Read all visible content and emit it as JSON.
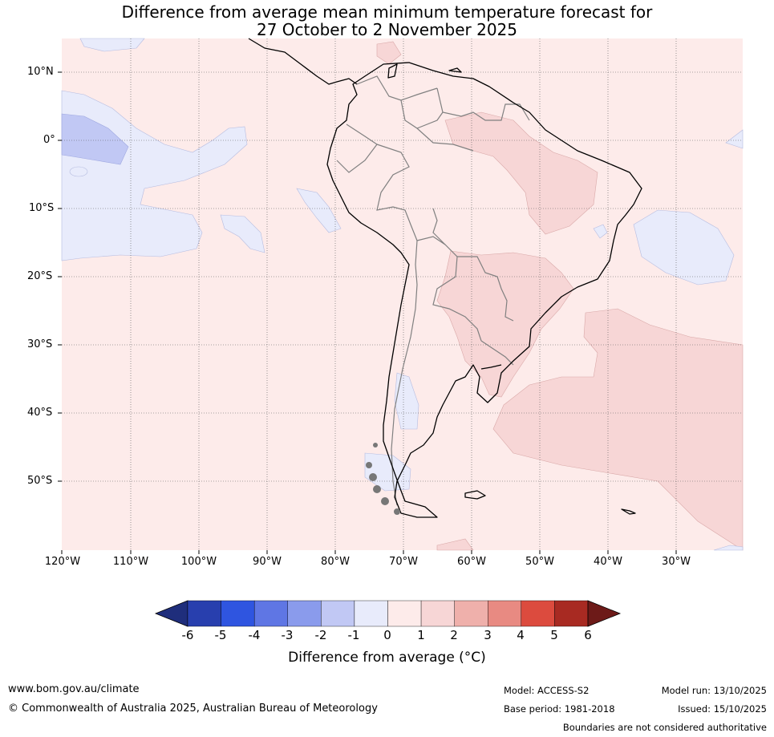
{
  "title": {
    "line1": "Difference from average mean minimum temperature forecast for",
    "line2": "27 October to 2 November 2025"
  },
  "lat_labels": [
    "10°N",
    "0°",
    "10°S",
    "20°S",
    "30°S",
    "40°S",
    "50°S"
  ],
  "lon_labels": [
    "120°W",
    "110°W",
    "100°W",
    "90°W",
    "80°W",
    "70°W",
    "60°W",
    "50°W",
    "40°W",
    "30°W"
  ],
  "colorbar": {
    "ticks": [
      "-6",
      "-5",
      "-4",
      "-3",
      "-2",
      "-1",
      "0",
      "1",
      "2",
      "3",
      "4",
      "5",
      "6"
    ],
    "colors": [
      "#1f2e7c",
      "#283fae",
      "#2f55e0",
      "#5f76e4",
      "#8a9bec",
      "#c1c8f4",
      "#e8ebfb",
      "#fdebea",
      "#f7d6d6",
      "#efb0ab",
      "#e88a82",
      "#dc4b3e",
      "#a82a22",
      "#6d1a18"
    ],
    "title": "Difference from average (°C)"
  },
  "footer": {
    "website": "www.bom.gov.au/climate",
    "copyright": "© Commonwealth of Australia 2025, Australian Bureau of Meteorology",
    "model": "Model: ACCESS-S2",
    "base_period": "Base period: 1981-2018",
    "model_run": "Model run: 13/10/2025",
    "issued": "Issued: 15/10/2025",
    "disclaimer": "Boundaries are not considered authoritative"
  }
}
